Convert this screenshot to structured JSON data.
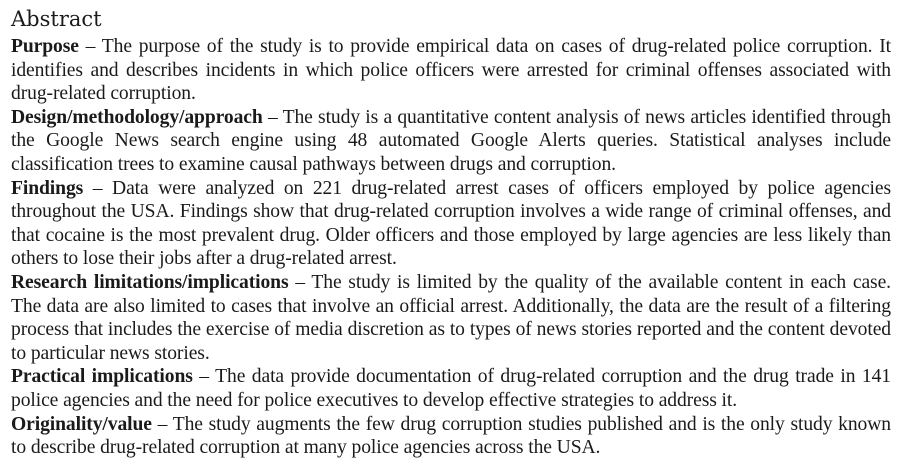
{
  "abstract": {
    "heading": "Abstract",
    "sections": [
      {
        "label": "Purpose",
        "separator": " – ",
        "text": "The purpose of the study is to provide empirical data on cases of drug-related police corruption. It identifies and describes incidents in which police officers were arrested for criminal offenses associated with drug-related corruption."
      },
      {
        "label": "Design/methodology/approach",
        "separator": " – ",
        "text": "The study is a quantitative content analysis of news articles identified through the Google News search engine using 48 automated Google Alerts queries. Statistical analyses include classification trees to examine causal pathways between drugs and corruption."
      },
      {
        "label": "Findings",
        "separator": " – ",
        "text": "Data were analyzed on 221 drug-related arrest cases of officers employed by police agencies throughout the USA. Findings show that drug-related corruption involves a wide range of criminal offenses, and that cocaine is the most prevalent drug. Older officers and those employed by large agencies are less likely than others to lose their jobs after a drug-related arrest."
      },
      {
        "label": "Research limitations/implications",
        "separator": " – ",
        "text": "The study is limited by the quality of the available content in each case. The data are also limited to cases that involve an official arrest. Additionally, the data are the result of a filtering process that includes the exercise of media discretion as to types of news stories reported and the content devoted to particular news stories."
      },
      {
        "label": "Practical implications",
        "separator": " – ",
        "text": "The data provide documentation of drug-related corruption and the drug trade in 141 police agencies and the need for police executives to develop effective strategies to address it."
      },
      {
        "label": "Originality/value",
        "separator": " – ",
        "text": "The study augments the few drug corruption studies published and is the only study known to describe drug-related corruption at many police agencies across the USA."
      }
    ]
  }
}
